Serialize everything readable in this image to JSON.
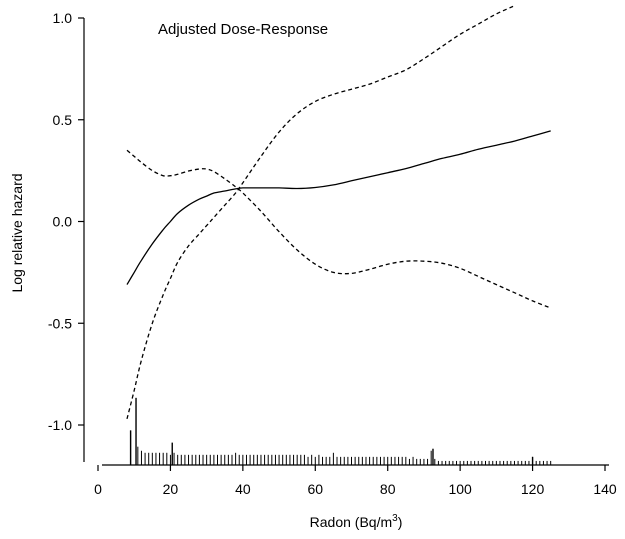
{
  "chart_data": {
    "type": "line",
    "title": "Adjusted Dose-Response",
    "xlabel": "Radon (Bq/m",
    "xlabel_superscript": "3",
    "xlabel_suffix": ")",
    "ylabel": "Log relative hazard",
    "xlim": [
      0,
      140
    ],
    "ylim": [
      -1.2,
      1.0
    ],
    "x_ticks": [
      0,
      20,
      40,
      60,
      80,
      100,
      120,
      140
    ],
    "x_tick_labels": [
      "0",
      "20",
      "40",
      "60",
      "80",
      "100",
      "120",
      "140"
    ],
    "y_ticks": [
      -1.0,
      -0.5,
      0.0,
      0.5,
      1.0
    ],
    "y_tick_labels": [
      "-1.0",
      "-0.5",
      "0.0",
      "0.5",
      "1.0"
    ],
    "grid": false,
    "series": [
      {
        "style": "solid",
        "x": [
          8,
          10,
          12,
          15,
          18,
          20,
          22,
          25,
          28,
          30,
          32,
          35,
          38,
          40,
          45,
          50,
          55,
          60,
          65,
          70,
          75,
          80,
          85,
          90,
          95,
          100,
          105,
          110,
          115,
          120,
          125
        ],
        "y": [
          -0.31,
          -0.25,
          -0.19,
          -0.11,
          -0.04,
          0.0,
          0.04,
          0.08,
          0.11,
          0.125,
          0.14,
          0.15,
          0.16,
          0.165,
          0.165,
          0.165,
          0.162,
          0.167,
          0.18,
          0.2,
          0.22,
          0.24,
          0.26,
          0.285,
          0.31,
          0.33,
          0.355,
          0.375,
          0.395,
          0.42,
          0.445
        ]
      },
      {
        "style": "dashed",
        "x": [
          8,
          10,
          12,
          15,
          18,
          20,
          22,
          25,
          28,
          30,
          32,
          35,
          38,
          40,
          45,
          50,
          55,
          60,
          65,
          70,
          75,
          80,
          85,
          90,
          95,
          100,
          105,
          110,
          115,
          120,
          125
        ],
        "y": [
          0.35,
          0.32,
          0.29,
          0.25,
          0.225,
          0.225,
          0.232,
          0.248,
          0.258,
          0.258,
          0.245,
          0.21,
          0.17,
          0.14,
          0.05,
          -0.05,
          -0.14,
          -0.21,
          -0.25,
          -0.255,
          -0.235,
          -0.21,
          -0.195,
          -0.195,
          -0.205,
          -0.23,
          -0.27,
          -0.31,
          -0.35,
          -0.39,
          -0.425
        ]
      },
      {
        "style": "dashed",
        "x": [
          8,
          10,
          12,
          15,
          18,
          20,
          22,
          25,
          28,
          30,
          32,
          35,
          38,
          40,
          45,
          50,
          55,
          60,
          65,
          70,
          75,
          80,
          85,
          90,
          95,
          100,
          105,
          110,
          115
        ],
        "y": [
          -0.97,
          -0.83,
          -0.68,
          -0.5,
          -0.36,
          -0.28,
          -0.2,
          -0.12,
          -0.06,
          -0.02,
          0.02,
          0.08,
          0.14,
          0.19,
          0.32,
          0.44,
          0.53,
          0.59,
          0.625,
          0.65,
          0.675,
          0.71,
          0.745,
          0.8,
          0.86,
          0.92,
          0.97,
          1.02,
          1.06
        ]
      }
    ],
    "rug": {
      "x": [
        9,
        11,
        12,
        13,
        14,
        15,
        16,
        17,
        18,
        19,
        20,
        21,
        22,
        23,
        24,
        25,
        26,
        27,
        28,
        29,
        30,
        31,
        32,
        33,
        34,
        35,
        36,
        37,
        38,
        39,
        40,
        41,
        42,
        43,
        44,
        45,
        46,
        47,
        48,
        49,
        50,
        51,
        52,
        53,
        54,
        55,
        56,
        57,
        58,
        59,
        60,
        61,
        62,
        63,
        64,
        65,
        66,
        67,
        68,
        69,
        70,
        71,
        72,
        73,
        74,
        75,
        76,
        77,
        78,
        79,
        80,
        81,
        82,
        83,
        84,
        85,
        86,
        87,
        88,
        89,
        90,
        91,
        92,
        93,
        94,
        95,
        96,
        97,
        98,
        99,
        100,
        101,
        102,
        103,
        104,
        105,
        106,
        107,
        108,
        109,
        110,
        111,
        112,
        113,
        114,
        115,
        116,
        117,
        118,
        119,
        120,
        121,
        122,
        123,
        124,
        125
      ],
      "height": [
        0.17,
        0.09,
        0.07,
        0.06,
        0.06,
        0.06,
        0.06,
        0.06,
        0.06,
        0.06,
        0.05,
        0.06,
        0.05,
        0.05,
        0.05,
        0.05,
        0.05,
        0.05,
        0.05,
        0.05,
        0.05,
        0.05,
        0.05,
        0.05,
        0.05,
        0.05,
        0.05,
        0.05,
        0.06,
        0.05,
        0.05,
        0.05,
        0.05,
        0.05,
        0.05,
        0.05,
        0.05,
        0.05,
        0.05,
        0.05,
        0.05,
        0.05,
        0.05,
        0.05,
        0.05,
        0.05,
        0.05,
        0.05,
        0.04,
        0.05,
        0.04,
        0.05,
        0.04,
        0.04,
        0.04,
        0.06,
        0.04,
        0.04,
        0.04,
        0.04,
        0.04,
        0.04,
        0.04,
        0.04,
        0.04,
        0.04,
        0.04,
        0.04,
        0.04,
        0.04,
        0.04,
        0.04,
        0.04,
        0.04,
        0.04,
        0.04,
        0.03,
        0.04,
        0.03,
        0.03,
        0.03,
        0.03,
        0.07,
        0.03,
        0.02,
        0.02,
        0.02,
        0.02,
        0.02,
        0.02,
        0.02,
        0.02,
        0.02,
        0.02,
        0.02,
        0.02,
        0.02,
        0.02,
        0.02,
        0.02,
        0.02,
        0.02,
        0.02,
        0.02,
        0.02,
        0.02,
        0.02,
        0.02,
        0.02,
        0.02,
        0.04,
        0.02,
        0.02,
        0.02,
        0.02,
        0.02
      ],
      "spikes": [
        {
          "x": 9,
          "height": 0.17
        },
        {
          "x": 10.5,
          "height": 0.33
        },
        {
          "x": 20.5,
          "height": 0.11
        },
        {
          "x": 92.5,
          "height": 0.08
        },
        {
          "x": 120,
          "height": 0.04
        }
      ]
    }
  }
}
